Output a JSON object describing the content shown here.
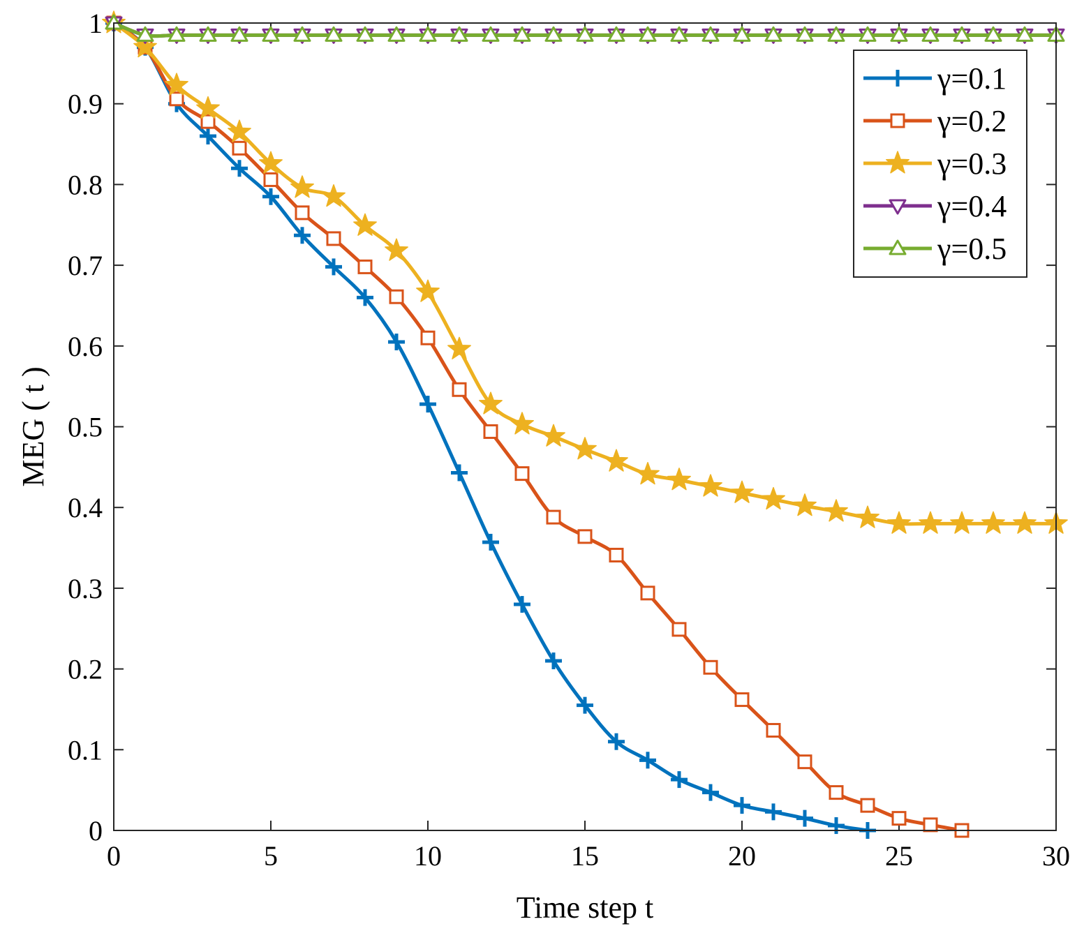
{
  "chart_data": {
    "type": "line",
    "title": "",
    "xlabel": "Time step t",
    "ylabel": "MEG ( t )",
    "xlim": [
      0,
      30
    ],
    "ylim": [
      0,
      1
    ],
    "xticks": [
      0,
      5,
      10,
      15,
      20,
      25,
      30
    ],
    "yticks": [
      0,
      0.1,
      0.2,
      0.3,
      0.4,
      0.5,
      0.6,
      0.7,
      0.8,
      0.9,
      1
    ],
    "xtick_labels": [
      "0",
      "5",
      "10",
      "15",
      "20",
      "25",
      "30"
    ],
    "ytick_labels": [
      "0",
      "0.1",
      "0.2",
      "0.3",
      "0.4",
      "0.5",
      "0.6",
      "0.7",
      "0.8",
      "0.9",
      "1"
    ],
    "grid": false,
    "legend_position": "top-right",
    "series": [
      {
        "name": "γ=0.1",
        "color": "#0072BD",
        "marker": "plus",
        "x": [
          0,
          1,
          2,
          3,
          4,
          5,
          6,
          7,
          8,
          9,
          10,
          11,
          12,
          13,
          14,
          15,
          16,
          17,
          18,
          19,
          20,
          21,
          22,
          23,
          24
        ],
        "values": [
          1.0,
          0.97,
          0.9,
          0.86,
          0.82,
          0.785,
          0.737,
          0.698,
          0.66,
          0.605,
          0.528,
          0.443,
          0.357,
          0.28,
          0.21,
          0.155,
          0.11,
          0.087,
          0.063,
          0.047,
          0.031,
          0.023,
          0.015,
          0.006,
          0.0
        ]
      },
      {
        "name": "γ=0.2",
        "color": "#D95319",
        "marker": "square",
        "x": [
          0,
          1,
          2,
          3,
          4,
          5,
          6,
          7,
          8,
          9,
          10,
          11,
          12,
          13,
          14,
          15,
          16,
          17,
          18,
          19,
          20,
          21,
          22,
          23,
          24,
          25,
          26,
          27
        ],
        "values": [
          1.0,
          0.97,
          0.906,
          0.878,
          0.845,
          0.806,
          0.765,
          0.733,
          0.698,
          0.661,
          0.61,
          0.546,
          0.494,
          0.442,
          0.388,
          0.364,
          0.341,
          0.294,
          0.249,
          0.202,
          0.162,
          0.124,
          0.085,
          0.047,
          0.031,
          0.015,
          0.007,
          0.0
        ]
      },
      {
        "name": "γ=0.3",
        "color": "#EDB120",
        "marker": "star",
        "x": [
          0,
          1,
          2,
          3,
          4,
          5,
          6,
          7,
          8,
          9,
          10,
          11,
          12,
          13,
          14,
          15,
          16,
          17,
          18,
          19,
          20,
          21,
          22,
          23,
          24,
          25,
          26,
          27,
          28,
          29,
          30
        ],
        "values": [
          1.0,
          0.97,
          0.923,
          0.894,
          0.865,
          0.826,
          0.796,
          0.785,
          0.749,
          0.718,
          0.667,
          0.596,
          0.528,
          0.503,
          0.488,
          0.472,
          0.457,
          0.441,
          0.434,
          0.426,
          0.418,
          0.41,
          0.402,
          0.395,
          0.387,
          0.38,
          0.38,
          0.38,
          0.38,
          0.38,
          0.38
        ]
      },
      {
        "name": "γ=0.4",
        "color": "#7E2F8E",
        "marker": "triangle-down",
        "x": [
          0,
          1,
          2,
          3,
          4,
          5,
          6,
          7,
          8,
          9,
          10,
          11,
          12,
          13,
          14,
          15,
          16,
          17,
          18,
          19,
          20,
          21,
          22,
          23,
          24,
          25,
          26,
          27,
          28,
          29,
          30
        ],
        "values": [
          1.0,
          0.985,
          0.985,
          0.985,
          0.985,
          0.985,
          0.985,
          0.985,
          0.985,
          0.985,
          0.985,
          0.985,
          0.985,
          0.985,
          0.985,
          0.985,
          0.985,
          0.985,
          0.985,
          0.985,
          0.985,
          0.985,
          0.985,
          0.985,
          0.985,
          0.985,
          0.985,
          0.985,
          0.985,
          0.985,
          0.985
        ]
      },
      {
        "name": "γ=0.5",
        "color": "#77AC30",
        "marker": "triangle-up",
        "x": [
          0,
          1,
          2,
          3,
          4,
          5,
          6,
          7,
          8,
          9,
          10,
          11,
          12,
          13,
          14,
          15,
          16,
          17,
          18,
          19,
          20,
          21,
          22,
          23,
          24,
          25,
          26,
          27,
          28,
          29,
          30
        ],
        "values": [
          1.0,
          0.985,
          0.985,
          0.985,
          0.985,
          0.985,
          0.985,
          0.985,
          0.985,
          0.985,
          0.985,
          0.985,
          0.985,
          0.985,
          0.985,
          0.985,
          0.985,
          0.985,
          0.985,
          0.985,
          0.985,
          0.985,
          0.985,
          0.985,
          0.985,
          0.985,
          0.985,
          0.985,
          0.985,
          0.985,
          0.985
        ]
      }
    ]
  }
}
